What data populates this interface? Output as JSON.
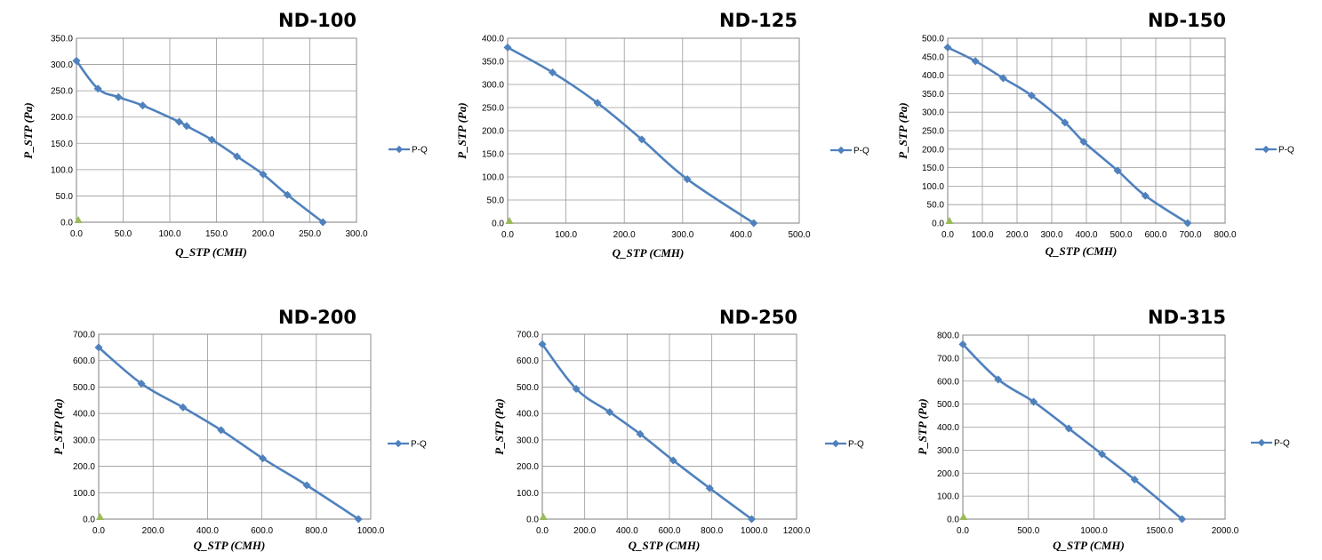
{
  "colors": {
    "series": "#4f81bd",
    "marker2": "#9bbb59"
  },
  "chart_data": [
    {
      "type": "line",
      "title": "ND-100",
      "xlabel": "Q_STP (CMH)",
      "ylabel": "P_STP (Pa)",
      "xlim": [
        0,
        300
      ],
      "xstep": 50,
      "ylim": [
        0,
        350
      ],
      "ystep": 50,
      "xtick_labels": [
        "0.0",
        "50.0",
        "100.0",
        "150.0",
        "200.0",
        "250.0",
        "300.0"
      ],
      "ytick_labels": [
        "0.0",
        "50.0",
        "100.0",
        "150.0",
        "200.0",
        "250.0",
        "300.0",
        "350.0"
      ],
      "grid": true,
      "legend": "right",
      "series": [
        {
          "name": "P-Q",
          "x": [
            0,
            23,
            45,
            71,
            110,
            118,
            145,
            172,
            200,
            226,
            264
          ],
          "y": [
            307,
            254,
            238,
            222,
            191,
            183,
            157,
            125,
            91,
            52,
            0
          ]
        }
      ],
      "extra_point": {
        "x": 2,
        "y": 0
      }
    },
    {
      "type": "line",
      "title": "ND-125",
      "xlabel": "Q_STP (CMH)",
      "ylabel": "P_STP (Pa)",
      "xlim": [
        0,
        500
      ],
      "xstep": 100,
      "ylim": [
        0,
        400
      ],
      "ystep": 50,
      "xtick_labels": [
        "0.0",
        "100.0",
        "200.0",
        "300.0",
        "400.0",
        "500.0"
      ],
      "ytick_labels": [
        "0.0",
        "50.0",
        "100.0",
        "150.0",
        "200.0",
        "250.0",
        "300.0",
        "350.0",
        "400.0"
      ],
      "grid": true,
      "legend": "right",
      "series": [
        {
          "name": "P-Q",
          "x": [
            0,
            77,
            154,
            230,
            308,
            422
          ],
          "y": [
            380,
            326,
            260,
            181,
            95,
            0
          ]
        }
      ],
      "extra_point": {
        "x": 3,
        "y": 0
      }
    },
    {
      "type": "line",
      "title": "ND-150",
      "xlabel": "Q_STP (CMH)",
      "ylabel": "P_STP (Pa)",
      "xlim": [
        0,
        800
      ],
      "xstep": 100,
      "ylim": [
        0,
        500
      ],
      "ystep": 50,
      "xtick_labels": [
        "0.0",
        "100.0",
        "200.0",
        "300.0",
        "400.0",
        "500.0",
        "600.0",
        "700.0",
        "800.0"
      ],
      "ytick_labels": [
        "0.0",
        "50.0",
        "100.0",
        "150.0",
        "200.0",
        "250.0",
        "300.0",
        "350.0",
        "400.0",
        "450.0",
        "500.0"
      ],
      "grid": true,
      "legend": "right",
      "series": [
        {
          "name": "P-Q",
          "x": [
            0,
            80,
            160,
            242,
            338,
            392,
            490,
            570,
            692
          ],
          "y": [
            475,
            438,
            392,
            345,
            272,
            220,
            142,
            74,
            0
          ]
        }
      ],
      "extra_point": {
        "x": 5,
        "y": 0
      }
    },
    {
      "type": "line",
      "title": "ND-200",
      "xlabel": "Q_STP (CMH)",
      "ylabel": "P_STP (Pa)",
      "xlim": [
        0,
        1000
      ],
      "xstep": 200,
      "ylim": [
        0,
        700
      ],
      "ystep": 100,
      "xtick_labels": [
        "0.0",
        "200.0",
        "400.0",
        "600.0",
        "800.0",
        "1000.0"
      ],
      "ytick_labels": [
        "0.0",
        "100.0",
        "200.0",
        "300.0",
        "400.0",
        "500.0",
        "600.0",
        "700.0"
      ],
      "grid": true,
      "legend": "right",
      "series": [
        {
          "name": "P-Q",
          "x": [
            0,
            157,
            310,
            450,
            603,
            765,
            955
          ],
          "y": [
            650,
            513,
            423,
            337,
            230,
            128,
            0
          ]
        }
      ],
      "extra_point": {
        "x": 5,
        "y": 0
      }
    },
    {
      "type": "line",
      "title": "ND-250",
      "xlabel": "Q_STP (CMH)",
      "ylabel": "P_STP (Pa)",
      "xlim": [
        0,
        1200
      ],
      "xstep": 200,
      "ylim": [
        0,
        700
      ],
      "ystep": 100,
      "xtick_labels": [
        "0.0",
        "200.0",
        "400.0",
        "600.0",
        "800.0",
        "1000.0",
        "1200.0"
      ],
      "ytick_labels": [
        "0.0",
        "100.0",
        "200.0",
        "300.0",
        "400.0",
        "500.0",
        "600.0",
        "700.0"
      ],
      "grid": true,
      "legend": "right",
      "series": [
        {
          "name": "P-Q",
          "x": [
            0,
            160,
            318,
            462,
            618,
            790,
            988
          ],
          "y": [
            662,
            493,
            405,
            322,
            222,
            117,
            0
          ]
        }
      ],
      "extra_point": {
        "x": 5,
        "y": 0
      }
    },
    {
      "type": "line",
      "title": "ND-315",
      "xlabel": "Q_STP (CMH)",
      "ylabel": "P_STP (Pa)",
      "xlim": [
        0,
        2000
      ],
      "xstep": 500,
      "ylim": [
        0,
        800
      ],
      "ystep": 100,
      "xtick_labels": [
        "0.0",
        "500.0",
        "1000.0",
        "1500.0",
        "2000.0"
      ],
      "ytick_labels": [
        "0.0",
        "100.0",
        "200.0",
        "300.0",
        "400.0",
        "500.0",
        "600.0",
        "700.0",
        "800.0"
      ],
      "grid": true,
      "legend": "right",
      "series": [
        {
          "name": "P-Q",
          "x": [
            0,
            270,
            540,
            808,
            1062,
            1310,
            1672
          ],
          "y": [
            760,
            607,
            510,
            394,
            282,
            172,
            0
          ]
        }
      ],
      "extra_point": {
        "x": 5,
        "y": 0
      }
    }
  ]
}
